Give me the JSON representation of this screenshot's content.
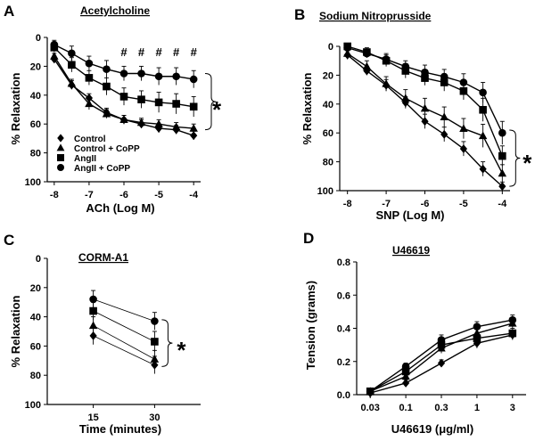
{
  "figure": {
    "panels": [
      {
        "id": "A",
        "letter": "A",
        "title": "Acetylcholine",
        "xlabel": "ACh (Log M)",
        "ylabel": "% Relaxation",
        "star": "*",
        "hash": "#",
        "legend": [
          "Control",
          "Control + CoPP",
          "AngII",
          "AngII + CoPP"
        ]
      },
      {
        "id": "B",
        "letter": "B",
        "title": "Sodium Nitroprusside",
        "xlabel": "SNP (Log M)",
        "ylabel": "% Relaxation",
        "star": "*"
      },
      {
        "id": "C",
        "letter": "C",
        "title": "CORM-A1",
        "xlabel": "Time (minutes)",
        "ylabel": "% Relaxation",
        "star": "*"
      },
      {
        "id": "D",
        "letter": "D",
        "title": "U46619",
        "xlabel": "U46619 (μg/ml)",
        "ylabel": "Tension (grams)"
      }
    ]
  },
  "chart_data": [
    {
      "panel": "A",
      "type": "line",
      "title": "Acetylcholine",
      "xlabel": "ACh (Log M)",
      "ylabel": "% Relaxation",
      "xlim": [
        -8.2,
        -3.8
      ],
      "ylim": [
        0,
        100
      ],
      "y_inverted": true,
      "xticks": [
        -8,
        -7,
        -6,
        -5,
        -4
      ],
      "yticks": [
        0,
        20,
        40,
        60,
        80,
        100
      ],
      "x": [
        -8,
        -7.5,
        -7,
        -6.5,
        -6,
        -5.5,
        -5,
        -4.5,
        -4
      ],
      "series": [
        {
          "name": "Control",
          "marker": "diamond",
          "values": [
            15,
            33,
            42,
            52,
            57,
            60,
            63,
            64,
            68
          ],
          "errors": [
            2,
            3,
            3,
            3,
            3,
            3,
            3,
            3,
            3
          ]
        },
        {
          "name": "Control + CoPP",
          "marker": "triangle",
          "values": [
            13,
            32,
            46,
            53,
            57,
            59,
            60,
            62,
            63
          ],
          "errors": [
            2,
            3,
            4,
            3,
            3,
            3,
            3,
            3,
            3
          ]
        },
        {
          "name": "AngII",
          "marker": "square",
          "values": [
            7,
            19,
            28,
            34,
            41,
            43,
            45,
            46,
            48
          ],
          "errors": [
            3,
            5,
            5,
            6,
            6,
            6,
            7,
            7,
            7
          ]
        },
        {
          "name": "AngII + CoPP",
          "marker": "circle",
          "values": [
            5,
            11,
            18,
            22,
            25,
            25,
            27,
            27,
            29
          ],
          "errors": [
            3,
            5,
            5,
            6,
            5,
            5,
            6,
            6,
            6
          ]
        }
      ],
      "annotations": [
        {
          "text": "#",
          "x": -6
        },
        {
          "text": "#",
          "x": -5.5
        },
        {
          "text": "#",
          "x": -5
        },
        {
          "text": "#",
          "x": -4.5
        },
        {
          "text": "#",
          "x": -4
        },
        {
          "text": "*"
        }
      ],
      "legend_position": "bottom-left"
    },
    {
      "panel": "B",
      "type": "line",
      "title": "Sodium Nitroprusside",
      "xlabel": "SNP (Log M)",
      "ylabel": "% Relaxation",
      "xlim": [
        -8.2,
        -3.8
      ],
      "ylim": [
        0,
        100
      ],
      "y_inverted": true,
      "xticks": [
        -8,
        -7,
        -6,
        -5,
        -4
      ],
      "yticks": [
        0,
        20,
        40,
        60,
        80,
        100
      ],
      "x": [
        -8,
        -7.5,
        -7,
        -6.5,
        -6,
        -5.5,
        -5,
        -4.5,
        -4
      ],
      "series": [
        {
          "name": "Control",
          "marker": "diamond",
          "values": [
            6,
            17,
            27,
            39,
            52,
            61,
            71,
            85,
            97
          ],
          "errors": [
            3,
            3,
            4,
            4,
            5,
            5,
            5,
            5,
            3
          ]
        },
        {
          "name": "Control + CoPP",
          "marker": "triangle",
          "values": [
            5,
            14,
            26,
            36,
            43,
            49,
            57,
            62,
            88
          ],
          "errors": [
            3,
            4,
            5,
            6,
            7,
            7,
            7,
            8,
            6
          ]
        },
        {
          "name": "AngII",
          "marker": "square",
          "values": [
            0,
            4,
            10,
            17,
            22,
            25,
            31,
            44,
            76
          ],
          "errors": [
            2,
            3,
            4,
            5,
            5,
            6,
            6,
            8,
            7
          ]
        },
        {
          "name": "AngII + CoPP",
          "marker": "circle",
          "values": [
            1,
            5,
            9,
            14,
            18,
            21,
            25,
            32,
            60
          ],
          "errors": [
            2,
            3,
            4,
            4,
            5,
            5,
            6,
            7,
            8
          ]
        }
      ],
      "annotations": [
        {
          "text": "*"
        }
      ]
    },
    {
      "panel": "C",
      "type": "line",
      "title": "CORM-A1",
      "xlabel": "Time (minutes)",
      "ylabel": "% Relaxation",
      "categories": [
        "15",
        "30"
      ],
      "ylim": [
        0,
        100
      ],
      "y_inverted": true,
      "yticks": [
        0,
        20,
        40,
        60,
        80,
        100
      ],
      "series": [
        {
          "name": "Control",
          "marker": "diamond",
          "values": [
            53,
            73
          ],
          "errors": [
            6,
            6
          ]
        },
        {
          "name": "Control + CoPP",
          "marker": "triangle",
          "values": [
            46,
            69
          ],
          "errors": [
            6,
            6
          ]
        },
        {
          "name": "AngII",
          "marker": "square",
          "values": [
            36,
            57
          ],
          "errors": [
            6,
            7
          ]
        },
        {
          "name": "AngII + CoPP",
          "marker": "circle",
          "values": [
            28,
            43
          ],
          "errors": [
            6,
            6
          ]
        }
      ],
      "annotations": [
        {
          "text": "*"
        }
      ]
    },
    {
      "panel": "D",
      "type": "line",
      "title": "U46619",
      "xlabel": "U46619 (μg/ml)",
      "ylabel": "Tension (grams)",
      "categories": [
        "0.03",
        "0.1",
        "0.3",
        "1",
        "3"
      ],
      "ylim": [
        0,
        0.8
      ],
      "yticks": [
        0.0,
        0.2,
        0.4,
        0.6,
        0.8
      ],
      "ytick_labels": [
        "0.0",
        "0.2",
        "0.4",
        "0.6",
        "0.8"
      ],
      "series": [
        {
          "name": "Control",
          "marker": "diamond",
          "values": [
            0.01,
            0.07,
            0.19,
            0.31,
            0.36
          ],
          "errors": [
            0.01,
            0.02,
            0.02,
            0.03,
            0.03
          ]
        },
        {
          "name": "Control + CoPP",
          "marker": "triangle",
          "values": [
            0.02,
            0.11,
            0.28,
            0.37,
            0.43
          ],
          "errors": [
            0.01,
            0.02,
            0.03,
            0.03,
            0.03
          ]
        },
        {
          "name": "AngII",
          "marker": "square",
          "values": [
            0.02,
            0.14,
            0.3,
            0.34,
            0.37
          ],
          "errors": [
            0.01,
            0.02,
            0.03,
            0.03,
            0.03
          ]
        },
        {
          "name": "AngII + CoPP",
          "marker": "circle",
          "values": [
            0.02,
            0.17,
            0.33,
            0.41,
            0.45
          ],
          "errors": [
            0.01,
            0.02,
            0.03,
            0.03,
            0.03
          ]
        }
      ]
    }
  ]
}
